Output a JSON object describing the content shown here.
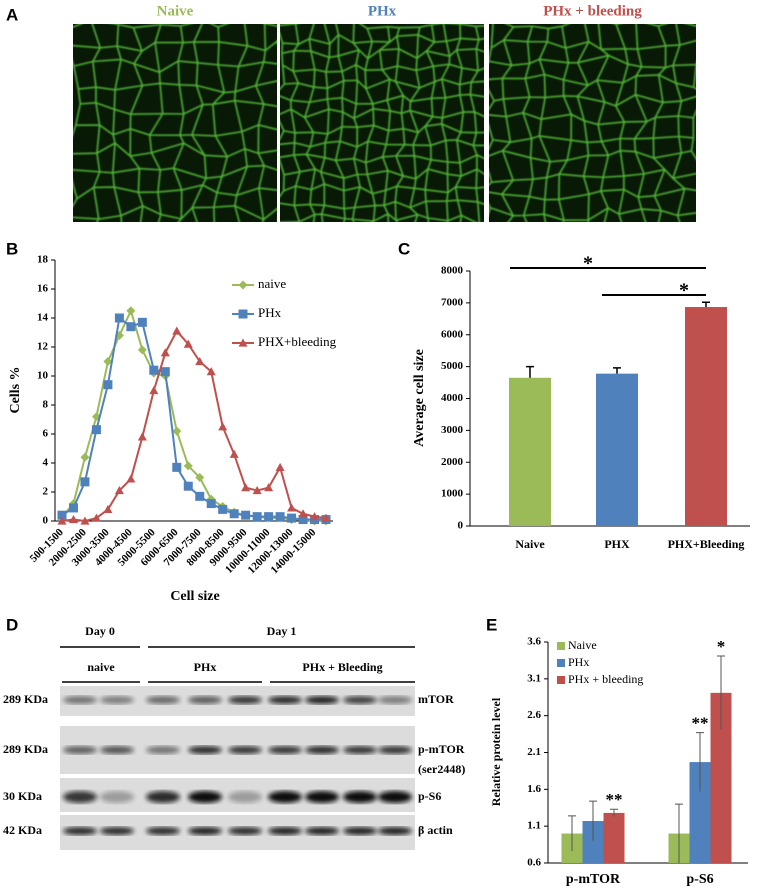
{
  "panels": {
    "a": "A",
    "b": "B",
    "c": "C",
    "d": "D",
    "e": "E"
  },
  "images": {
    "titles": [
      "Naive",
      "PHx",
      "PHx + bleeding"
    ],
    "colors": [
      "#9bbb59",
      "#4f81bd",
      "#c0504d"
    ]
  },
  "chart_data": [
    {
      "type": "line",
      "ylabel": "Cells %",
      "xlabel": "Cell size",
      "categories": [
        "500-1500",
        null,
        "2000-2500",
        null,
        "3000-3500",
        null,
        "4000-4500",
        null,
        "5000-5500",
        null,
        "6000-6500",
        null,
        "7000-7500",
        null,
        "8000-8500",
        null,
        "9000-9500",
        null,
        "10000-11000",
        null,
        "12000-13000",
        null,
        "14000-15000",
        null
      ],
      "series": [
        {
          "name": "naive",
          "color": "#9bbb59",
          "marker": "diamond",
          "values": [
            0.3,
            1.2,
            4.4,
            7.2,
            11.0,
            12.8,
            14.5,
            11.8,
            10.2,
            10.0,
            6.2,
            3.8,
            3.0,
            1.5,
            1.0,
            0.6,
            0.4,
            0.3,
            0.2,
            0.2,
            0.1,
            0.1,
            0.0,
            0.0
          ]
        },
        {
          "name": "PHx",
          "color": "#4f81bd",
          "marker": "square",
          "values": [
            0.4,
            0.9,
            2.7,
            6.3,
            9.4,
            14.0,
            13.4,
            13.7,
            10.4,
            10.3,
            3.7,
            2.4,
            1.7,
            1.2,
            0.8,
            0.5,
            0.4,
            0.3,
            0.3,
            0.3,
            0.2,
            0.1,
            0.1,
            0.1
          ]
        },
        {
          "name": "PHX+bleeding",
          "color": "#c0504d",
          "marker": "triangle",
          "values": [
            0.0,
            0.1,
            0.0,
            0.2,
            0.8,
            2.1,
            2.9,
            5.8,
            9.0,
            11.6,
            13.1,
            12.2,
            11.0,
            10.3,
            6.5,
            4.6,
            2.3,
            2.1,
            2.3,
            3.7,
            0.9,
            0.5,
            0.3,
            0.2
          ]
        }
      ],
      "ylim": [
        0,
        18
      ],
      "yticks": [
        0,
        2,
        4,
        6,
        8,
        10,
        12,
        14,
        16,
        18
      ]
    },
    {
      "type": "bar",
      "ylabel": "Average cell size",
      "categories": [
        "Naive",
        "PHX",
        "PHX+Bleeding"
      ],
      "values": [
        4650,
        4780,
        6870
      ],
      "errors": [
        350,
        180,
        150
      ],
      "colors": [
        "#9bbb59",
        "#4f81bd",
        "#c0504d"
      ],
      "ylim": [
        0,
        8000
      ],
      "yticks": [
        0,
        1000,
        2000,
        3000,
        4000,
        5000,
        6000,
        7000,
        8000
      ],
      "annotations": [
        "*",
        "*"
      ]
    },
    {
      "type": "grouped-bar",
      "ylabel": "Relative protein level",
      "categories": [
        "p-mTOR",
        "p-S6"
      ],
      "series": [
        {
          "name": "Naive",
          "color": "#9bbb59",
          "values": [
            1.0,
            1.0
          ],
          "errors": [
            0.24,
            0.4
          ]
        },
        {
          "name": "PHx",
          "color": "#4f81bd",
          "values": [
            1.17,
            1.97
          ],
          "errors": [
            0.27,
            0.4
          ]
        },
        {
          "name": "PHx + bleeding",
          "color": "#c0504d",
          "values": [
            1.28,
            2.91
          ],
          "errors": [
            0.05,
            0.5
          ]
        }
      ],
      "ylim": [
        0.6,
        3.6
      ],
      "yticks": [
        0.6,
        1.1,
        1.6,
        2.1,
        2.6,
        3.1,
        3.6
      ],
      "annotations": [
        "**",
        "**",
        "*"
      ]
    }
  ],
  "blot": {
    "days": [
      "Day 0",
      "Day 1"
    ],
    "groups": [
      "naive",
      "PHx",
      "PHx + Bleeding"
    ],
    "rows": [
      {
        "weight": "289 KDa",
        "protein": "mTOR"
      },
      {
        "weight": "289 KDa",
        "protein": "p-mTOR",
        "note": "(ser2448)"
      },
      {
        "weight": "30 KDa",
        "protein": "p-S6"
      },
      {
        "weight": "42 KDa",
        "protein": "β actin"
      }
    ]
  }
}
